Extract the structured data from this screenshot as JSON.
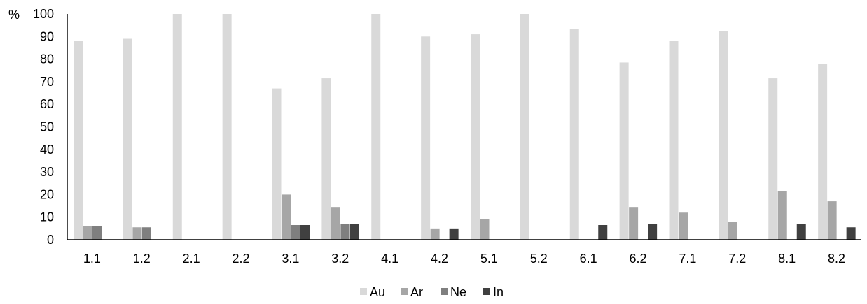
{
  "chart_data": {
    "type": "bar",
    "unit_label": "%",
    "ylim": [
      0,
      100
    ],
    "yticks": [
      0,
      10,
      20,
      30,
      40,
      50,
      60,
      70,
      80,
      90,
      100
    ],
    "grid": false,
    "legend_position": "bottom",
    "categories": [
      "1.1",
      "1.2",
      "2.1",
      "2.2",
      "3.1",
      "3.2",
      "4.1",
      "4.2",
      "5.1",
      "5.2",
      "6.1",
      "6.2",
      "7.1",
      "7.2",
      "8.1",
      "8.2"
    ],
    "series": [
      {
        "name": "Au",
        "color": "#d9d9d9",
        "values": [
          88,
          89,
          100,
          100,
          67,
          71.5,
          100,
          90,
          91,
          100,
          93.5,
          78.5,
          88,
          92.5,
          71.5,
          78
        ]
      },
      {
        "name": "Ar",
        "color": "#a6a6a6",
        "values": [
          6,
          5.5,
          0,
          0,
          20,
          14.5,
          0,
          5,
          9,
          0,
          0,
          14.5,
          12,
          8,
          21.5,
          17
        ]
      },
      {
        "name": "Ne",
        "color": "#7f7f7f",
        "values": [
          6,
          5.5,
          0,
          0,
          6.5,
          7,
          0,
          0,
          0,
          0,
          0,
          0,
          0,
          0,
          0,
          0
        ]
      },
      {
        "name": "In",
        "color": "#404040",
        "values": [
          0,
          0,
          0,
          0,
          6.5,
          7,
          0,
          5,
          0,
          0,
          6.5,
          7,
          0,
          0,
          7,
          5.5
        ]
      }
    ]
  }
}
